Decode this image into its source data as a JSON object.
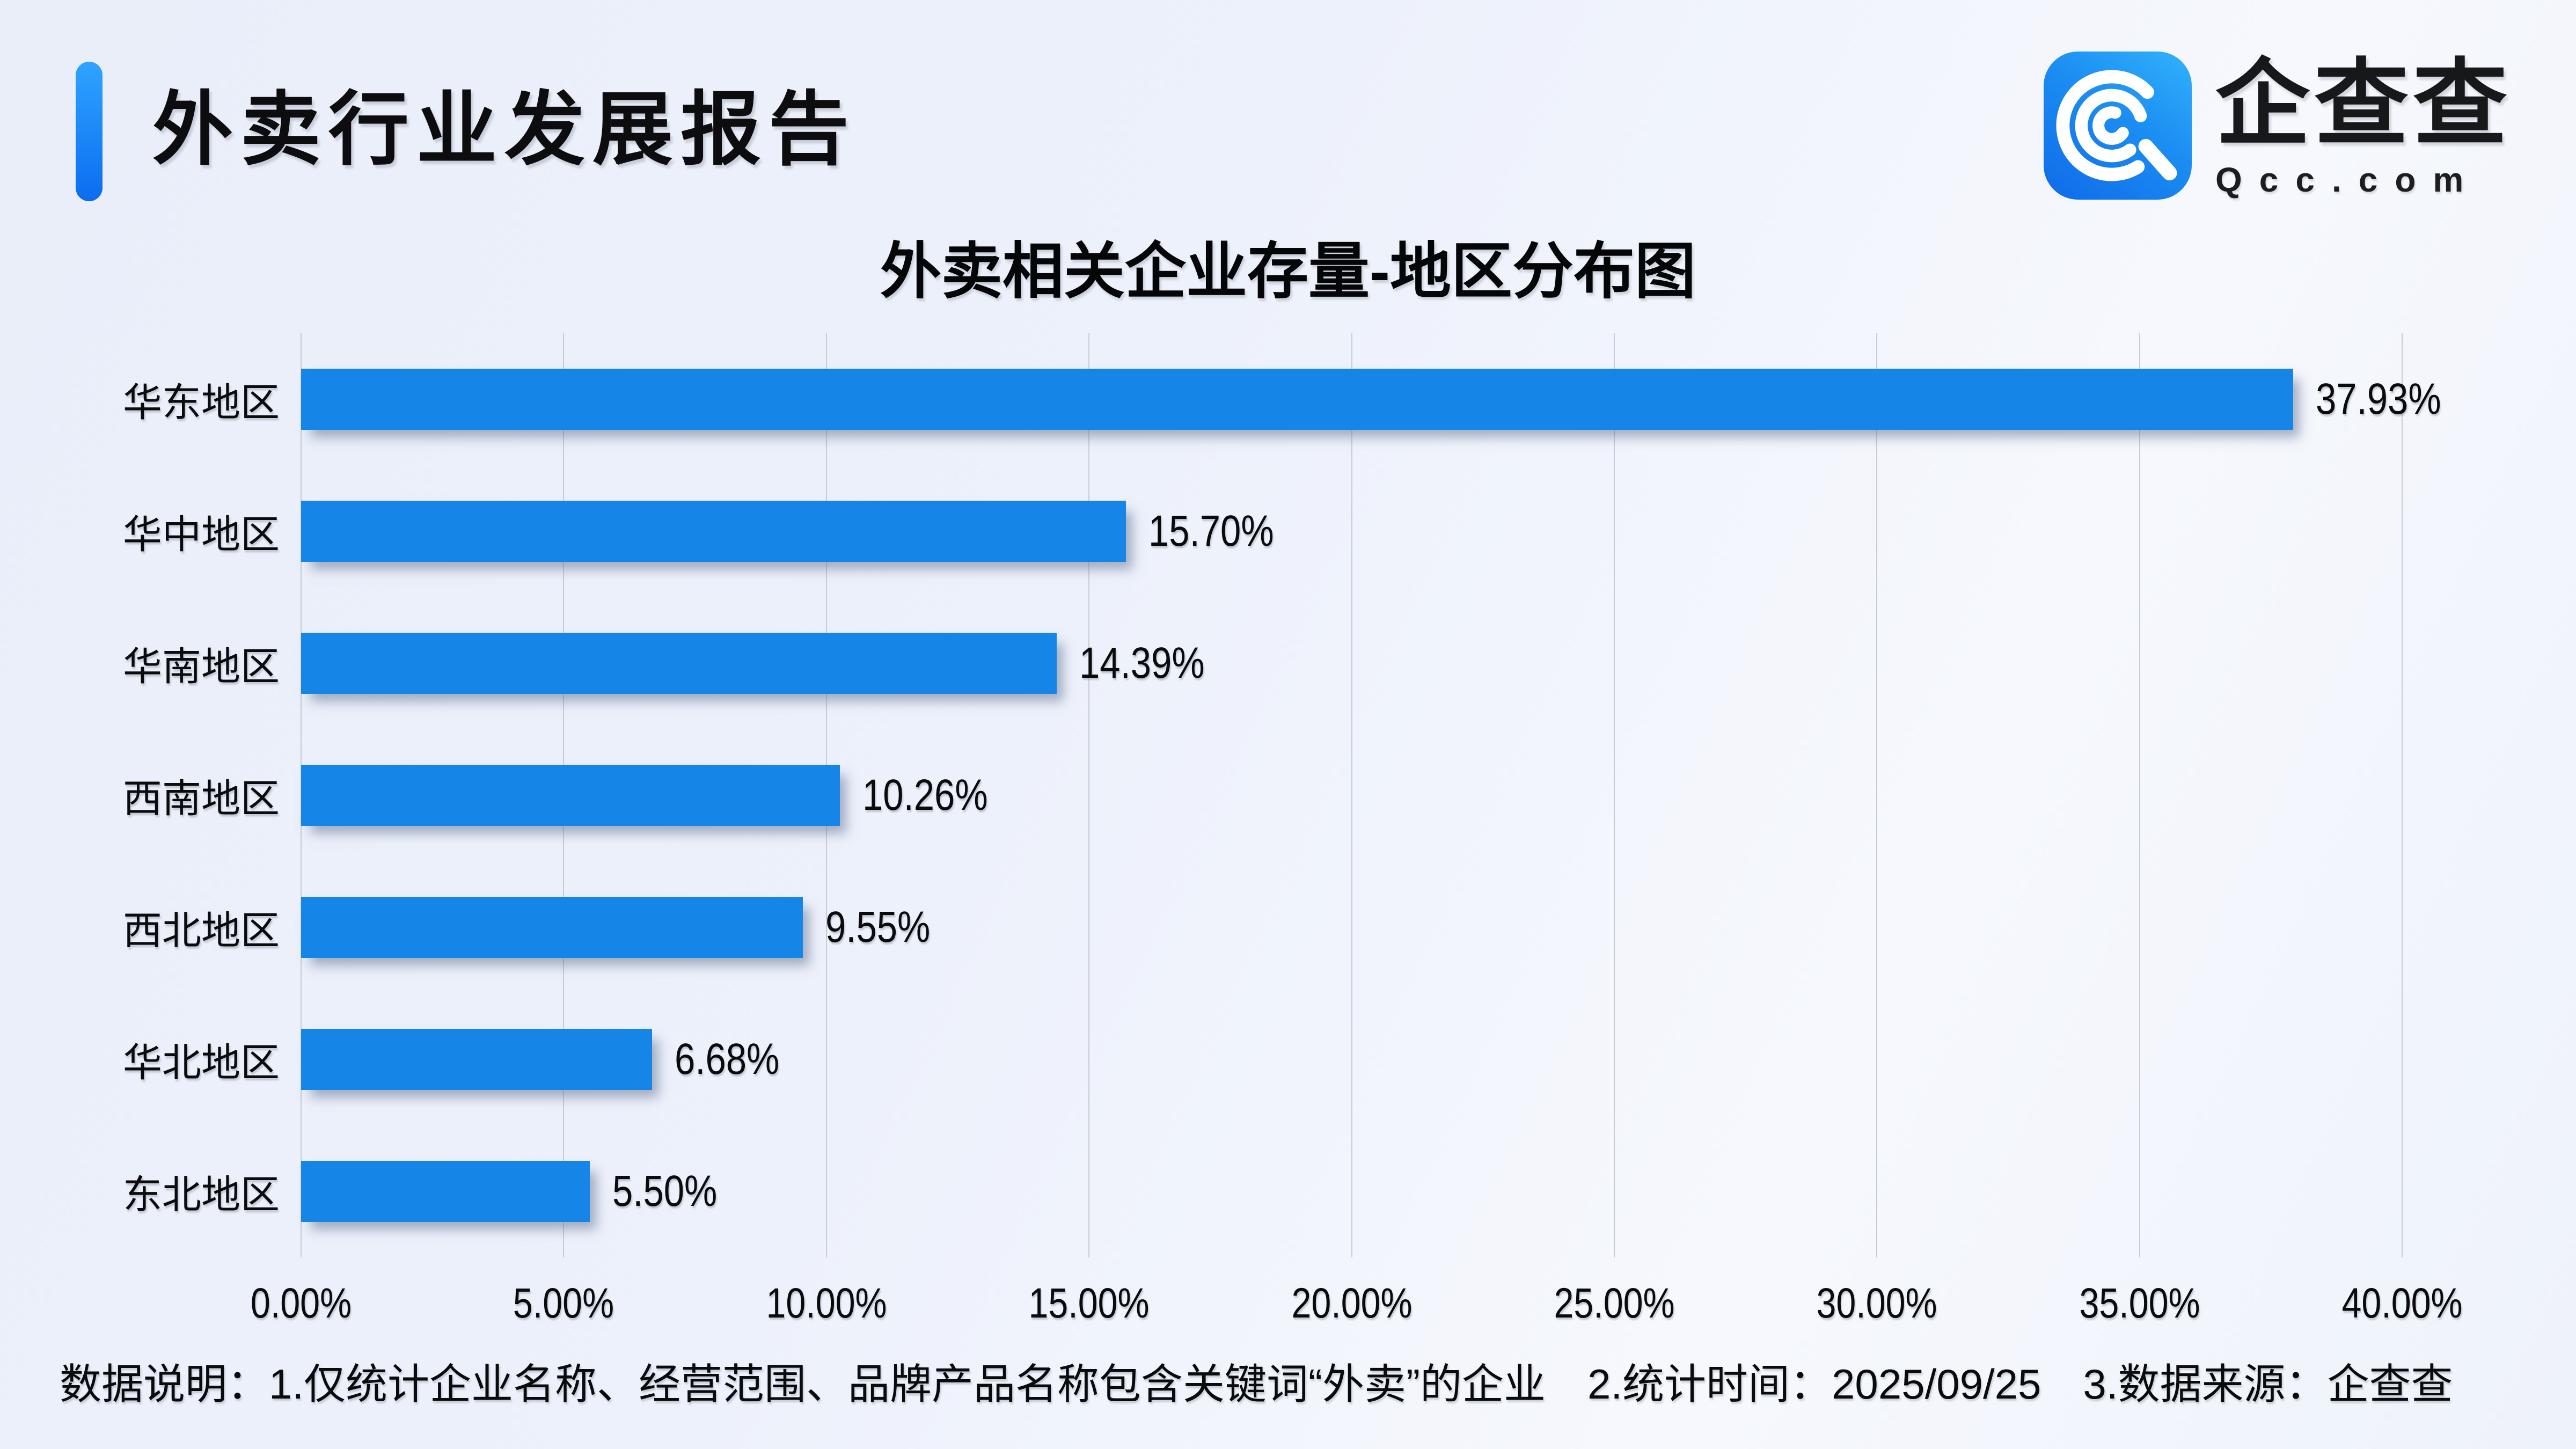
{
  "header": {
    "title": "外卖行业发展报告",
    "logo": {
      "brand": "企查查",
      "domain": "Qcc.com"
    }
  },
  "chart_data": {
    "type": "bar",
    "orientation": "horizontal",
    "title": "外卖相关企业存量-地区分布图",
    "categories": [
      "华东地区",
      "华中地区",
      "华南地区",
      "西南地区",
      "西北地区",
      "华北地区",
      "东北地区"
    ],
    "values": [
      37.93,
      15.7,
      14.39,
      10.26,
      9.55,
      6.68,
      5.5
    ],
    "value_labels": [
      "37.93%",
      "15.70%",
      "14.39%",
      "10.26%",
      "9.55%",
      "6.68%",
      "5.50%"
    ],
    "x_ticks": [
      "0.00%",
      "5.00%",
      "10.00%",
      "15.00%",
      "20.00%",
      "25.00%",
      "30.00%",
      "35.00%",
      "40.00%"
    ],
    "xlim": [
      0,
      40
    ],
    "grid": true,
    "legend": false,
    "bar_color": "#1585e8",
    "gridline_color": "#c7cbd5"
  },
  "footnote": "数据说明：1.仅统计企业名称、经营范围、品牌产品名称包含关键词“外卖”的企业　2.统计时间：2025/09/25　3.数据来源：企查查"
}
